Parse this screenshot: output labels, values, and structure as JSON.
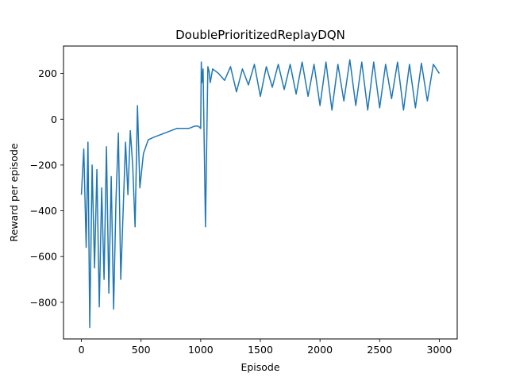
{
  "chart_data": {
    "type": "line",
    "title": "DoublePrioritizedReplayDQN",
    "xlabel": "Episode",
    "ylabel": "Reward per episode",
    "xlim": [
      -150,
      3150
    ],
    "ylim": [
      -960,
      320
    ],
    "xticks": [
      0,
      500,
      1000,
      1500,
      2000,
      2500,
      3000
    ],
    "xtick_labels": [
      "0",
      "500",
      "1000",
      "1500",
      "2000",
      "2500",
      "3000"
    ],
    "yticks": [
      -800,
      -600,
      -400,
      -200,
      0,
      200
    ],
    "ytick_labels": [
      "−800",
      "−600",
      "−400",
      "−200",
      "0",
      "200"
    ],
    "grid": false,
    "series": [
      {
        "color": "#1f77b4",
        "x": [
          0,
          20,
          40,
          55,
          70,
          90,
          110,
          130,
          150,
          170,
          190,
          210,
          230,
          250,
          270,
          290,
          310,
          330,
          350,
          370,
          390,
          410,
          430,
          450,
          470,
          490,
          520,
          560,
          600,
          650,
          700,
          750,
          800,
          850,
          900,
          950,
          980,
          1000,
          1005,
          1010,
          1020,
          1040,
          1060,
          1070,
          1080,
          1100,
          1150,
          1200,
          1250,
          1300,
          1350,
          1400,
          1450,
          1500,
          1550,
          1600,
          1650,
          1700,
          1750,
          1800,
          1850,
          1900,
          1950,
          2000,
          2050,
          2100,
          2150,
          2200,
          2250,
          2300,
          2350,
          2400,
          2450,
          2500,
          2550,
          2600,
          2650,
          2700,
          2750,
          2800,
          2850,
          2900,
          2950,
          3000
        ],
        "y": [
          -330,
          -130,
          -560,
          -100,
          -910,
          -200,
          -650,
          -220,
          -820,
          -300,
          -700,
          -120,
          -760,
          -250,
          -830,
          -350,
          -60,
          -700,
          -400,
          -100,
          -330,
          -50,
          -200,
          -470,
          60,
          -300,
          -150,
          -90,
          -80,
          -70,
          -60,
          -50,
          -40,
          -40,
          -40,
          -30,
          -30,
          -40,
          250,
          160,
          220,
          -470,
          230,
          210,
          160,
          220,
          200,
          170,
          230,
          120,
          220,
          150,
          240,
          100,
          230,
          140,
          240,
          130,
          240,
          110,
          250,
          100,
          240,
          60,
          250,
          40,
          240,
          80,
          260,
          60,
          250,
          40,
          250,
          50,
          240,
          90,
          250,
          40,
          240,
          50,
          245,
          80,
          240,
          200
        ]
      }
    ]
  }
}
